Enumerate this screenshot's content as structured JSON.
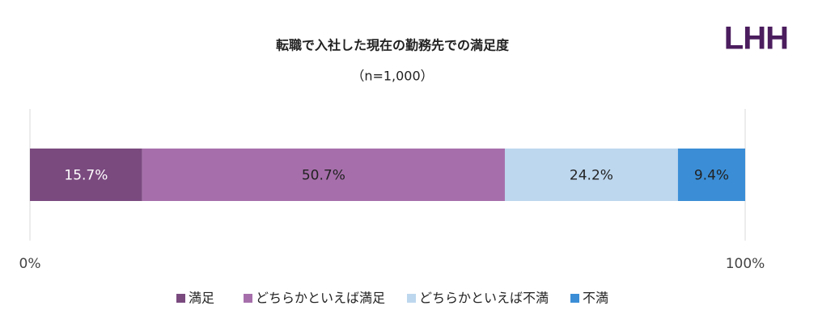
{
  "logo": "LHH",
  "chart_data": {
    "type": "stacked_bar_horizontal",
    "title": "転職で入社した現在の勤務先での満足度",
    "subtitle": "（n=1,000）",
    "categories": [
      null
    ],
    "series": [
      {
        "name": "満足",
        "color": "#7a4a7f",
        "values": [
          15.7
        ],
        "value_labels": [
          "15.7%"
        ]
      },
      {
        "name": "どちらかといえば満足",
        "color": "#a66fab",
        "values": [
          50.7
        ],
        "value_labels": [
          "50.7%"
        ]
      },
      {
        "name": "どちらかといえば不満",
        "color": "#bdd7ee",
        "values": [
          24.2
        ],
        "value_labels": [
          "24.2%"
        ]
      },
      {
        "name": "不満",
        "color": "#3b8ed6",
        "values": [
          9.4
        ],
        "value_labels": [
          "9.4%"
        ]
      }
    ],
    "xlim": [
      0,
      100
    ],
    "xticks": [
      {
        "value": 0,
        "label": "0%"
      },
      {
        "value": 100,
        "label": "100%"
      }
    ],
    "grid": true,
    "legend": "bottom"
  }
}
